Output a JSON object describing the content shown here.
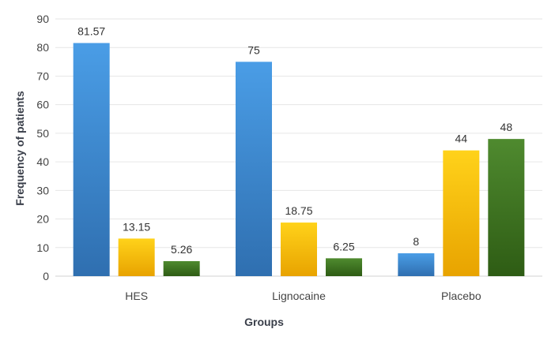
{
  "chart_data": {
    "type": "bar",
    "title": "",
    "xlabel": "Groups",
    "ylabel": "Frequency of patients",
    "categories": [
      "HES",
      "Lignocaine",
      "Placebo"
    ],
    "series": [
      {
        "values": [
          81.57,
          75,
          8
        ],
        "labels": [
          "81.57",
          "75",
          "8"
        ],
        "color_top": "#4a9de6",
        "color_bottom": "#2f6fb0"
      },
      {
        "values": [
          13.15,
          18.75,
          44
        ],
        "labels": [
          "13.15",
          "18.75",
          "44"
        ],
        "color_top": "#ffd21a",
        "color_bottom": "#e8a300"
      },
      {
        "values": [
          5.26,
          6.25,
          48
        ],
        "labels": [
          "5.26",
          "6.25",
          "48"
        ],
        "color_top": "#4f8a2f",
        "color_bottom": "#2e5c14"
      }
    ],
    "ylim": [
      0,
      90
    ],
    "yticks": [
      0,
      10,
      20,
      30,
      40,
      50,
      60,
      70,
      80,
      90
    ],
    "grid": true,
    "legend": "none"
  }
}
